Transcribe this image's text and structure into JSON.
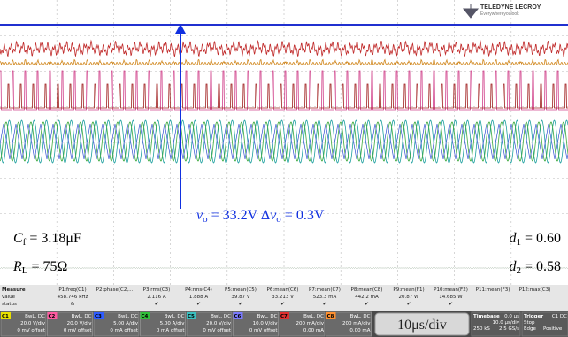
{
  "logo": {
    "brand": "TELEDYNE LECROY",
    "tagline": "Everywhereyoulook"
  },
  "annotations": {
    "vo": [
      "v",
      "o",
      " = 33.2V  Δ",
      "v",
      "o",
      " = 0.3V"
    ],
    "cf": [
      "C",
      "f",
      " = 3.18μF"
    ],
    "rl": [
      "R",
      "L",
      " = 75Ω"
    ],
    "d1": [
      "d",
      "1",
      " = 0.60"
    ],
    "d2": [
      "d",
      "2",
      " = 0.58"
    ]
  },
  "measure": {
    "row_labels": [
      "Measure",
      "value",
      "status"
    ],
    "columns": [
      {
        "name": "P1:freq(C1)",
        "value": "458.746 kHz",
        "status": "&"
      },
      {
        "name": "P2:phase(C2,..."
      },
      {
        "name": "P3:rms(C3)",
        "value": "2.116 A",
        "status": "✔"
      },
      {
        "name": "P4:rms(C4)",
        "value": "1.888 A",
        "status": "✔"
      },
      {
        "name": "P5:mean(C5)",
        "value": "39.87 V",
        "status": "✔"
      },
      {
        "name": "P6:mean(C6)",
        "value": "33.213 V",
        "status": "✔"
      },
      {
        "name": "P7:mean(C7)",
        "value": "523.3 mA",
        "status": "✔"
      },
      {
        "name": "P8:mean(C8)",
        "value": "442.2 mA",
        "status": "✔"
      },
      {
        "name": "P9:mean(F1)",
        "value": "20.87 W",
        "status": "✔"
      },
      {
        "name": "P10:mean(F2)",
        "value": "14.685 W",
        "status": "✔"
      },
      {
        "name": "P11:mean(F3)"
      },
      {
        "name": "P12:max(C3)"
      }
    ]
  },
  "channels": [
    {
      "name": "C1",
      "coupling": "BwL, DC",
      "scale": "20.0 V/div",
      "offset": "0 mV offset",
      "color": "#e8e000"
    },
    {
      "name": "C2",
      "coupling": "BwL, DC",
      "scale": "20.0 V/div",
      "offset": "0 mV offset",
      "color": "#ff5aa0"
    },
    {
      "name": "C3",
      "coupling": "BwL, DC",
      "scale": "5.00 A/div",
      "offset": "0 mA offset",
      "color": "#2f5cff"
    },
    {
      "name": "C4",
      "coupling": "BwL, DC",
      "scale": "5.00 A/div",
      "offset": "0 mA offset",
      "color": "#2fbf3a"
    },
    {
      "name": "C5",
      "coupling": "BwL, DC",
      "scale": "20.0 V/div",
      "offset": "0 mV offset",
      "color": "#3cc0c0"
    },
    {
      "name": "C6",
      "coupling": "BwL, DC",
      "scale": "10.0 V/div",
      "offset": "0 mV offset",
      "color": "#7a7aff"
    },
    {
      "name": "C7",
      "coupling": "BwL, DC",
      "scale": "200 mA/div",
      "offset": "0.00 mA",
      "color": "#e03030"
    },
    {
      "name": "C8",
      "coupling": "BwL, DC",
      "scale": "200 mA/div",
      "offset": "0.00 mA",
      "color": "#ff9030"
    }
  ],
  "timescale": "10μs/div",
  "timebase": {
    "label": "Timebase",
    "delay": "0.0 µs",
    "scale": "10.0 µs/div",
    "samples": "250 kS",
    "rate": "2.5 GS/s"
  },
  "trigger": {
    "label": "Trigger",
    "source": "C1 DC",
    "mode": "Stop",
    "type": "Edge",
    "slope": "Positive"
  }
}
